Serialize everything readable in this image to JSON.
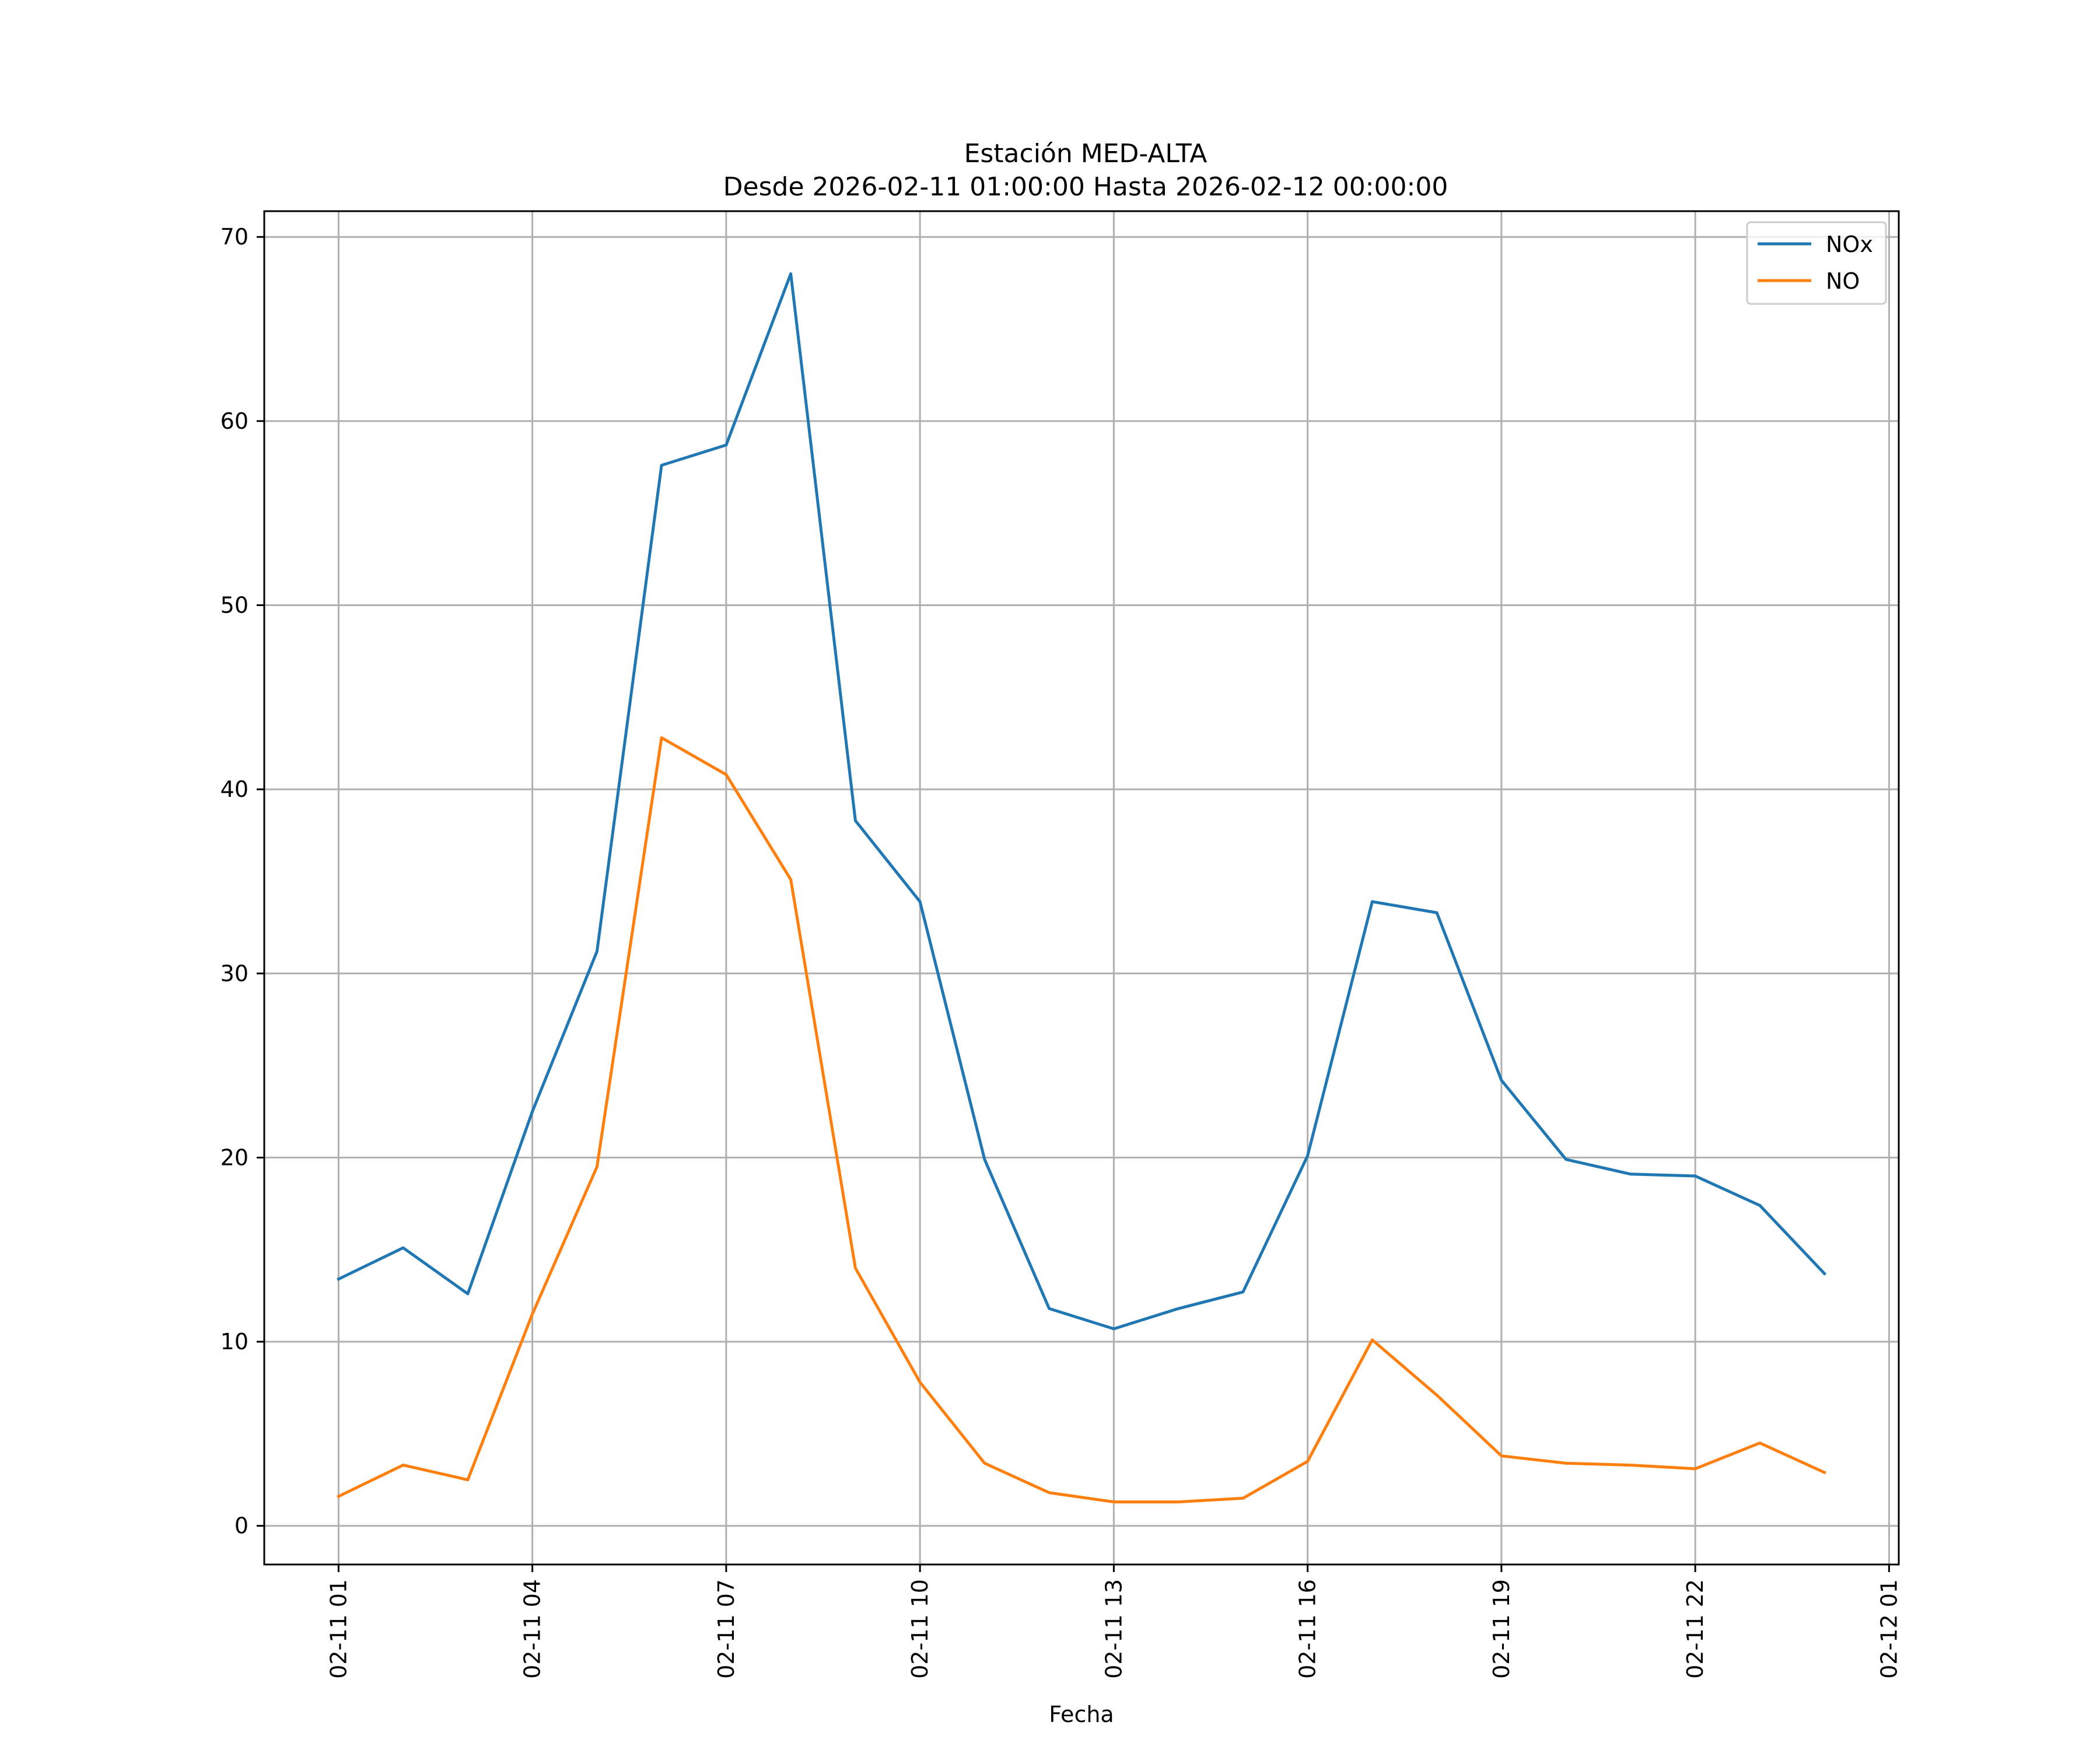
{
  "chart_data": {
    "type": "line",
    "title": "Estación MED-ALTA",
    "subtitle": "Desde 2026-02-11 01:00:00 Hasta 2026-02-12 00:00:00",
    "xlabel": "Fecha",
    "ylabel": "",
    "x": [
      "2026-02-11 01:00",
      "2026-02-11 02:00",
      "2026-02-11 03:00",
      "2026-02-11 04:00",
      "2026-02-11 05:00",
      "2026-02-11 06:00",
      "2026-02-11 07:00",
      "2026-02-11 08:00",
      "2026-02-11 09:00",
      "2026-02-11 10:00",
      "2026-02-11 11:00",
      "2026-02-11 12:00",
      "2026-02-11 13:00",
      "2026-02-11 14:00",
      "2026-02-11 15:00",
      "2026-02-11 16:00",
      "2026-02-11 17:00",
      "2026-02-11 18:00",
      "2026-02-11 19:00",
      "2026-02-11 20:00",
      "2026-02-11 21:00",
      "2026-02-11 22:00",
      "2026-02-11 23:00",
      "2026-02-12 00:00"
    ],
    "xlim": [
      "2026-02-10 23:51",
      "2026-02-12 01:09"
    ],
    "xticks": [
      "2026-02-11 01:00",
      "2026-02-11 04:00",
      "2026-02-11 07:00",
      "2026-02-11 10:00",
      "2026-02-11 13:00",
      "2026-02-11 16:00",
      "2026-02-11 19:00",
      "2026-02-11 22:00",
      "2026-02-12 01:00"
    ],
    "xtick_labels": [
      "02-11 01",
      "02-11 04",
      "02-11 07",
      "02-11 10",
      "02-11 13",
      "02-11 16",
      "02-11 19",
      "02-11 22",
      "02-12 01"
    ],
    "ylim": [
      -2.1,
      71.4
    ],
    "yticks": [
      0,
      10,
      20,
      30,
      40,
      50,
      60,
      70
    ],
    "ytick_labels": [
      "0",
      "10",
      "20",
      "30",
      "40",
      "50",
      "60",
      "70"
    ],
    "grid": true,
    "legend_position": "top-right",
    "series": [
      {
        "name": "NOx",
        "color": "#1f77b4",
        "values": [
          13.4,
          15.1,
          12.6,
          22.5,
          31.2,
          57.6,
          58.7,
          68.0,
          38.3,
          33.9,
          19.9,
          11.8,
          10.7,
          11.8,
          12.7,
          20.1,
          33.9,
          33.3,
          24.2,
          19.9,
          19.1,
          19.0,
          17.4,
          13.7
        ]
      },
      {
        "name": "NO",
        "color": "#ff7f0e",
        "values": [
          1.6,
          3.3,
          2.5,
          11.5,
          19.5,
          42.8,
          40.8,
          35.1,
          14.0,
          7.8,
          3.4,
          1.8,
          1.3,
          1.3,
          1.5,
          3.5,
          10.1,
          7.1,
          3.8,
          3.4,
          3.3,
          3.1,
          4.5,
          2.9
        ]
      }
    ]
  }
}
